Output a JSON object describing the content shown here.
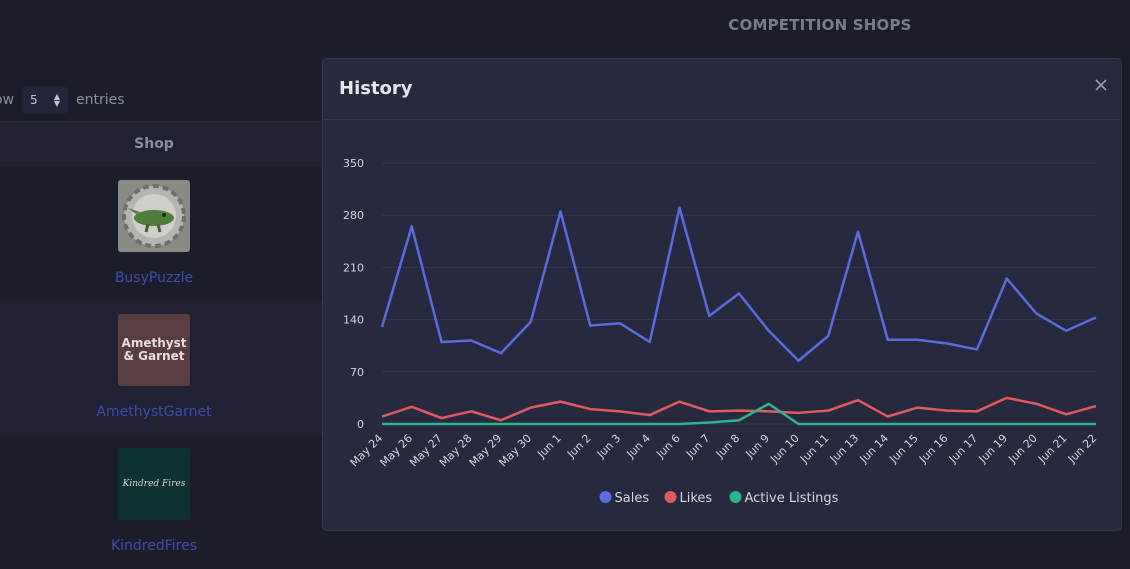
{
  "page": {
    "title": "COMPETITION SHOPS"
  },
  "table": {
    "show_label": "ow",
    "entries_value": "5",
    "entries_label": "entries",
    "columns": [
      "Shop"
    ],
    "rows": [
      {
        "name": "BusyPuzzle",
        "thumb_bg": "#8a8a86"
      },
      {
        "name": "AmethystGarnet",
        "thumb_bg": "#5a3d40",
        "thumb_text_1": "Amethyst",
        "thumb_text_2": "& Garnet"
      },
      {
        "name": "KindredFires",
        "thumb_bg": "#0e3231",
        "thumb_text": "Kindred Fires"
      }
    ]
  },
  "modal": {
    "title": "History",
    "close_icon": "close-icon"
  },
  "colors": {
    "sales": "#5b6be0",
    "likes": "#e05a5f",
    "active": "#2bb58a",
    "grid": "#34374c",
    "tick": "#d4d6e2"
  },
  "chart_data": {
    "type": "line",
    "categories": [
      "May 24",
      "May 26",
      "May 27",
      "May 28",
      "May 29",
      "May 30",
      "Jun 1",
      "Jun 2",
      "Jun 3",
      "Jun 4",
      "Jun 6",
      "Jun 7",
      "Jun 8",
      "Jun 9",
      "Jun 10",
      "Jun 11",
      "Jun 13",
      "Jun 14",
      "Jun 15",
      "Jun 16",
      "Jun 17",
      "Jun 19",
      "Jun 20",
      "Jun 21",
      "Jun 22"
    ],
    "series": [
      {
        "name": "Sales",
        "values": [
          130,
          265,
          110,
          112,
          95,
          137,
          285,
          132,
          135,
          110,
          290,
          145,
          175,
          125,
          85,
          118,
          258,
          113,
          113,
          108,
          100,
          195,
          148,
          125,
          143
        ]
      },
      {
        "name": "Likes",
        "values": [
          10,
          23,
          8,
          17,
          5,
          22,
          30,
          20,
          17,
          12,
          30,
          17,
          18,
          17,
          15,
          18,
          32,
          10,
          22,
          18,
          17,
          35,
          27,
          13,
          24
        ]
      },
      {
        "name": "Active Listings",
        "values": [
          0,
          0,
          0,
          0,
          0,
          0,
          0,
          0,
          0,
          0,
          0,
          2,
          5,
          27,
          0,
          0,
          0,
          0,
          0,
          0,
          0,
          0,
          0,
          0,
          0
        ]
      }
    ],
    "yticks": [
      0,
      70,
      140,
      210,
      280,
      350
    ],
    "ylim": [
      0,
      350
    ],
    "grid": true,
    "legend": "bottom"
  }
}
